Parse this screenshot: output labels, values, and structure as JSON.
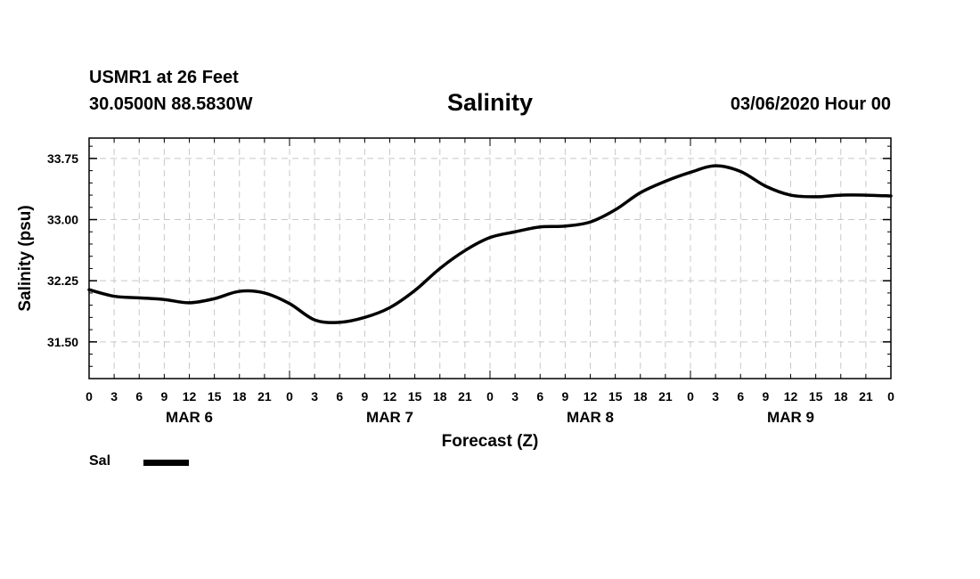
{
  "header": {
    "station": "USMR1 at 26 Feet",
    "coords": "30.0500N 88.5830W",
    "title": "Salinity",
    "datetime": "03/06/2020 Hour 00"
  },
  "legend": {
    "label": "Sal",
    "color": "#000000"
  },
  "chart_data": {
    "type": "line",
    "title": "Salinity",
    "xlabel": "Forecast (Z)",
    "ylabel": "Salinity (psu)",
    "ylim": [
      31.05,
      34.0
    ],
    "xlim": [
      0,
      96
    ],
    "yticks": [
      31.5,
      32.25,
      33.0,
      33.75
    ],
    "ytick_labels": [
      "31.50",
      "32.25",
      "33.00",
      "33.75"
    ],
    "xtick_labels": [
      "0",
      "3",
      "6",
      "9",
      "12",
      "15",
      "18",
      "21",
      "0",
      "3",
      "6",
      "9",
      "12",
      "15",
      "18",
      "21",
      "0",
      "3",
      "6",
      "9",
      "12",
      "15",
      "18",
      "21",
      "0",
      "3",
      "6",
      "9",
      "12",
      "15",
      "18",
      "21",
      "0"
    ],
    "day_labels": [
      {
        "label": "MAR 6",
        "hour": 12
      },
      {
        "label": "MAR 7",
        "hour": 36
      },
      {
        "label": "MAR 8",
        "hour": 60
      },
      {
        "label": "MAR 9",
        "hour": 84
      }
    ],
    "grid": true,
    "series": [
      {
        "name": "Sal",
        "x": [
          0,
          3,
          6,
          9,
          12,
          15,
          18,
          21,
          24,
          27,
          30,
          33,
          36,
          39,
          42,
          45,
          48,
          51,
          54,
          57,
          60,
          63,
          66,
          69,
          72,
          75,
          78,
          81,
          84,
          87,
          90,
          93,
          96
        ],
        "values": [
          32.14,
          32.06,
          32.04,
          32.02,
          31.98,
          32.03,
          32.12,
          32.1,
          31.97,
          31.77,
          31.74,
          31.8,
          31.92,
          32.13,
          32.4,
          32.62,
          32.78,
          32.85,
          32.91,
          32.92,
          32.97,
          33.12,
          33.33,
          33.47,
          33.58,
          33.66,
          33.59,
          33.41,
          33.3,
          33.28,
          33.3,
          33.3,
          33.29
        ]
      }
    ]
  }
}
